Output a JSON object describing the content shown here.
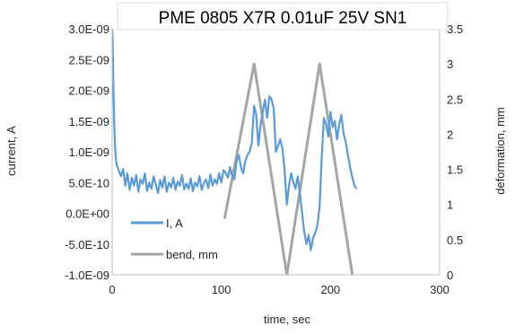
{
  "chart_data": {
    "type": "line",
    "title": "PME 0805 X7R 0.01uF 25V SN1",
    "xlabel": "time, sec",
    "ylabel": "current, A",
    "y2label": "deformation, mm",
    "xlim": [
      0,
      300
    ],
    "ylim": [
      -1e-09,
      3e-09
    ],
    "y2lim": [
      0,
      3.5
    ],
    "x_ticks": [
      0,
      100,
      200,
      300
    ],
    "x_tick_labels": [
      "0",
      "100",
      "200",
      "300"
    ],
    "y_ticks": [
      -1e-09,
      -5e-10,
      0,
      5e-10,
      1e-09,
      1.5e-09,
      2e-09,
      2.5e-09,
      3e-09
    ],
    "y_tick_labels": [
      "-1.0E-09",
      "-5.0E-10",
      "0.0E+00",
      "5.0E-10",
      "1.0E-09",
      "1.5E-09",
      "2.0E-09",
      "2.5E-09",
      "3.0E-09"
    ],
    "y2_ticks": [
      0,
      0.5,
      1,
      1.5,
      2,
      2.5,
      3,
      3.5
    ],
    "y2_tick_labels": [
      "0",
      "0.5",
      "1",
      "1.5",
      "2",
      "2.5",
      "3",
      "3.5"
    ],
    "grid": false,
    "legend_position": "bottom-left",
    "series": [
      {
        "name": "I, A",
        "axis": "left",
        "color": "#5b9bd5",
        "x": [
          0,
          0.5,
          1,
          2,
          3,
          4,
          5,
          6,
          8,
          10,
          12,
          14,
          16,
          18,
          20,
          22,
          24,
          26,
          28,
          30,
          32,
          34,
          36,
          38,
          40,
          42,
          44,
          46,
          48,
          50,
          52,
          54,
          56,
          58,
          60,
          62,
          64,
          66,
          68,
          70,
          72,
          74,
          76,
          78,
          80,
          82,
          84,
          86,
          88,
          90,
          92,
          94,
          96,
          98,
          100,
          102,
          104,
          106,
          108,
          110,
          112,
          114,
          116,
          118,
          120,
          122,
          124,
          126,
          128,
          130,
          132,
          134,
          136,
          138,
          140,
          142,
          144,
          146,
          148,
          150,
          152,
          154,
          156,
          158,
          160,
          162,
          164,
          166,
          168,
          170,
          172,
          174,
          176,
          178,
          180,
          182,
          184,
          186,
          188,
          190,
          192,
          194,
          196,
          198,
          200,
          202,
          204,
          206,
          208,
          210,
          212,
          214,
          216,
          218,
          220,
          222,
          224
        ],
        "values": [
          3e-09,
          2.8e-09,
          2.2e-09,
          1.4e-09,
          9.5e-10,
          8e-10,
          7.5e-10,
          7e-10,
          6e-10,
          7.2e-10,
          4.5e-10,
          6.5e-10,
          3.8e-10,
          5.8e-10,
          4.5e-10,
          6.2e-10,
          3.5e-10,
          5.5e-10,
          4.8e-10,
          6.5e-10,
          3.6e-10,
          5e-10,
          4e-10,
          6e-10,
          4.6e-10,
          3.3e-10,
          5.4e-10,
          4.2e-10,
          6e-10,
          3.5e-10,
          5e-10,
          4.2e-10,
          5.8e-10,
          3.8e-10,
          5.2e-10,
          4.5e-10,
          6.2e-10,
          3.9e-10,
          4.8e-10,
          4e-10,
          5.7e-10,
          3.6e-10,
          5e-10,
          4.4e-10,
          6e-10,
          3.8e-10,
          4.9e-10,
          5.5e-10,
          4.1e-10,
          6.3e-10,
          4.5e-10,
          5.5e-10,
          4.8e-10,
          6.5e-10,
          5e-10,
          7e-10,
          6.6e-10,
          5.8e-10,
          7.5e-10,
          6e-10,
          5.5e-10,
          8.5e-10,
          9.5e-10,
          7.5e-10,
          6.5e-10,
          8.5e-10,
          9.5e-10,
          1e-09,
          1.15e-09,
          1.75e-09,
          1.6e-09,
          1.1e-09,
          1.45e-09,
          1.65e-09,
          1.85e-09,
          1.55e-09,
          1.9e-09,
          1.85e-09,
          1.7e-09,
          1e-09,
          1.1e-09,
          1.2e-09,
          1.05e-09,
          7e-10,
          1.4e-10,
          4.5e-10,
          6.5e-10,
          5e-10,
          4e-10,
          6e-10,
          3.2e-10,
          0.0,
          -3e-10,
          -5e-10,
          -3.5e-10,
          -6e-10,
          -4e-10,
          -3.2e-10,
          -2e-10,
          1e-10,
          9e-10,
          1.55e-09,
          1.45e-09,
          1.25e-09,
          1.65e-09,
          1.4e-09,
          1.5e-09,
          1.2e-09,
          1.45e-09,
          1.6e-09,
          1.3e-09,
          1.15e-09,
          9.5e-10,
          7.5e-10,
          5.8e-10,
          4.5e-10,
          4e-10
        ]
      },
      {
        "name": "bend, mm",
        "axis": "right",
        "color": "#a5a5a5",
        "x": [
          103,
          130,
          160,
          190,
          220
        ],
        "values": [
          0.8,
          3.0,
          0.0,
          3.0,
          0.0
        ]
      }
    ]
  }
}
